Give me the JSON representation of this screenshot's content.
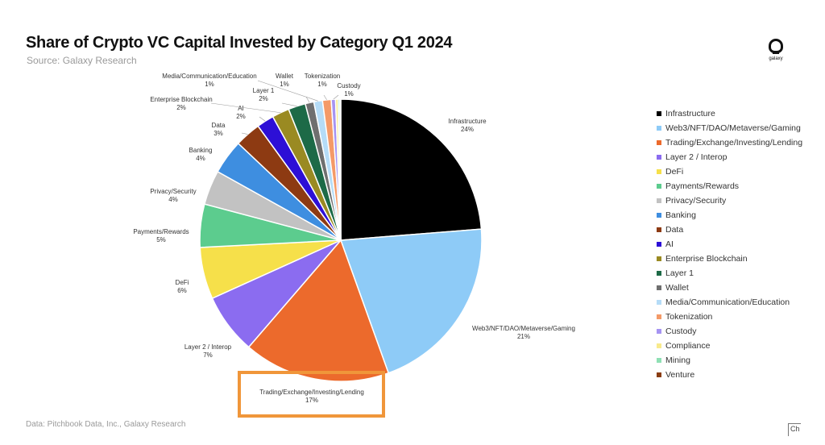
{
  "header": {
    "title": "Share of Crypto VC Capital Invested by Category Q1 2024",
    "subtitle": "Source: Galaxy Research"
  },
  "logo": {
    "text": "galaxy"
  },
  "footer": {
    "source": "Data: Pitchbook Data, Inc., Galaxy Research"
  },
  "corner_mark": "Ch",
  "chart_data": {
    "type": "pie",
    "title": "Share of Crypto VC Capital Invested by Category Q1 2024",
    "legend_position": "right",
    "slices": [
      {
        "label": "Infrastructure",
        "value": 24,
        "pct_text": "24%",
        "color": "#000000"
      },
      {
        "label": "Web3/NFT/DAO/Metaverse/Gaming",
        "value": 21,
        "pct_text": "21%",
        "color": "#8ecbf7"
      },
      {
        "label": "Trading/Exchange/Investing/Lending",
        "value": 17,
        "pct_text": "17%",
        "color": "#ec6a2c"
      },
      {
        "label": "Layer 2 / Interop",
        "value": 7,
        "pct_text": "7%",
        "color": "#8b6cf0"
      },
      {
        "label": "DeFi",
        "value": 6,
        "pct_text": "6%",
        "color": "#f6e04a"
      },
      {
        "label": "Payments/Rewards",
        "value": 5,
        "pct_text": "5%",
        "color": "#5ccc8e"
      },
      {
        "label": "Privacy/Security",
        "value": 4,
        "pct_text": "4%",
        "color": "#c2c2c2"
      },
      {
        "label": "Banking",
        "value": 4,
        "pct_text": "4%",
        "color": "#3e8ee0"
      },
      {
        "label": "Data",
        "value": 3,
        "pct_text": "3%",
        "color": "#8d3a12"
      },
      {
        "label": "AI",
        "value": 2,
        "pct_text": "2%",
        "color": "#2d0fd6"
      },
      {
        "label": "Enterprise Blockchain",
        "value": 2,
        "pct_text": "2%",
        "color": "#9a8a22"
      },
      {
        "label": "Layer 1",
        "value": 2,
        "pct_text": "2%",
        "color": "#1d6a47"
      },
      {
        "label": "Wallet",
        "value": 1,
        "pct_text": "1%",
        "color": "#6f6f6f"
      },
      {
        "label": "Media/Communication/Education",
        "value": 1,
        "pct_text": "1%",
        "color": "#b5dcf7"
      },
      {
        "label": "Tokenization",
        "value": 1,
        "pct_text": "1%",
        "color": "#f49a68"
      },
      {
        "label": "Custody",
        "value": 0.5,
        "pct_text": "1%",
        "color": "#a694f2"
      },
      {
        "label": "Compliance",
        "value": 0.3,
        "pct_text": "",
        "color": "#f8ea8c"
      },
      {
        "label": "Mining",
        "value": 0.2,
        "pct_text": "",
        "color": "#8fe0b4"
      },
      {
        "label": "Venture",
        "value": 0.1,
        "pct_text": "",
        "color": "#8a3d12"
      }
    ]
  },
  "highlight": {
    "color": "#f0963a",
    "target": "Trading/Exchange/Investing/Lending"
  }
}
